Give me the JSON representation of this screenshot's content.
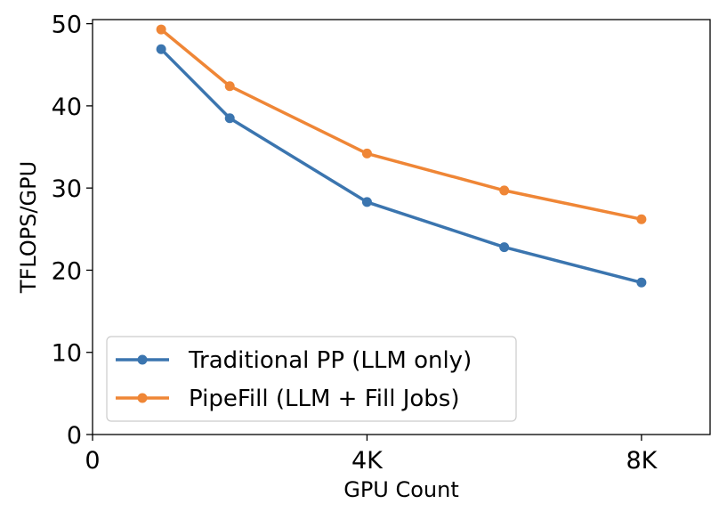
{
  "chart_data": {
    "type": "line",
    "title": "",
    "xlabel": "GPU Count",
    "ylabel": "TFLOPS/GPU",
    "xlim": [
      0,
      9216
    ],
    "ylim": [
      0,
      50.5
    ],
    "x_ticks": [
      0,
      4096,
      8192
    ],
    "x_tick_labels": [
      "0",
      "4K",
      "8K"
    ],
    "y_ticks": [
      0,
      10,
      20,
      30,
      40,
      50
    ],
    "y_tick_labels": [
      "0",
      "10",
      "20",
      "30",
      "40",
      "50"
    ],
    "grid": false,
    "legend_position": "lower-left",
    "series": [
      {
        "name": "Traditional PP (LLM only)",
        "color": "#3b75af",
        "marker": "circle",
        "x": [
          1024,
          2048,
          4096,
          6144,
          8192
        ],
        "y": [
          46.9,
          38.5,
          28.3,
          22.8,
          18.5
        ]
      },
      {
        "name": "PipeFill (LLM + Fill Jobs)",
        "color": "#ef8636",
        "marker": "circle",
        "x": [
          1024,
          2048,
          4096,
          6144,
          8192
        ],
        "y": [
          49.3,
          42.4,
          34.2,
          29.7,
          26.2
        ]
      }
    ]
  }
}
